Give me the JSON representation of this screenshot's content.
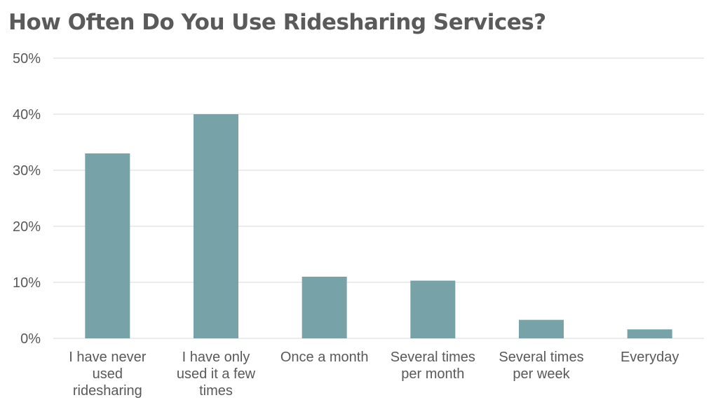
{
  "title": "How Often Do You Use Ridesharing Services?",
  "colors": {
    "bar": "#76a2a8",
    "grid": "#d9d9d9",
    "text": "#595959",
    "title": "#5a5a5a"
  },
  "chart_data": {
    "type": "bar",
    "title": "How Often Do You Use Ridesharing Services?",
    "xlabel": "",
    "ylabel": "",
    "categories": [
      "I have never used ridesharing",
      "I have only used it a few times",
      "Once a month",
      "Several times per month",
      "Several times per week",
      "Everyday"
    ],
    "category_lines": [
      [
        "I have never",
        "used",
        "ridesharing"
      ],
      [
        "I have only",
        "used it a few",
        "times"
      ],
      [
        "Once a month"
      ],
      [
        "Several times",
        "per month"
      ],
      [
        "Several times",
        "per week"
      ],
      [
        "Everyday"
      ]
    ],
    "values": [
      33,
      40,
      11,
      10.3,
      3.3,
      1.6
    ],
    "ylim": [
      0,
      50
    ],
    "yticks": [
      0,
      10,
      20,
      30,
      40,
      50
    ],
    "ytick_labels": [
      "0%",
      "10%",
      "20%",
      "30%",
      "40%",
      "50%"
    ],
    "grid": true,
    "legend": "none"
  }
}
